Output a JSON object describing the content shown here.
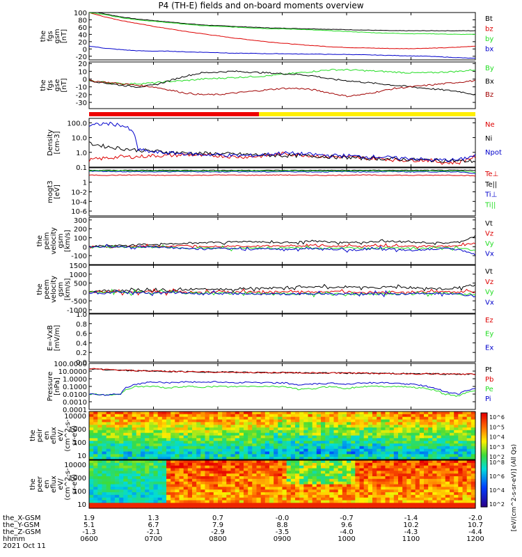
{
  "title": "P4 (TH-E) fields and on-board moments overview",
  "colors": {
    "black": "#000000",
    "red": "#dd0000",
    "green": "#22dd22",
    "blue": "#0000cc",
    "yellow": "#ffee00",
    "darkred": "#a00000"
  },
  "chart_data": [
    {
      "type": "line",
      "id": "fgs-gsm",
      "ylabel_lines": [
        "the",
        "fgs",
        "gsm",
        "[nT]"
      ],
      "ylim": [
        -30,
        100
      ],
      "yticks": [
        "-20",
        "0",
        "20",
        "40",
        "60",
        "80",
        "100"
      ],
      "yvals": [
        -20,
        0,
        20,
        40,
        60,
        80,
        100
      ],
      "series": [
        {
          "name": "Bt",
          "color": "#000000",
          "values": [
            105,
            96,
            88,
            82,
            78,
            74,
            70,
            66,
            64,
            62,
            60,
            58,
            57,
            56,
            55,
            54,
            53,
            52,
            51,
            50,
            50,
            50,
            50,
            50,
            50
          ]
        },
        {
          "name": "bz",
          "color": "#dd0000",
          "values": [
            100,
            88,
            78,
            70,
            62,
            55,
            48,
            42,
            36,
            30,
            25,
            20,
            16,
            12,
            9,
            6,
            4,
            3,
            2,
            1,
            1,
            2,
            3,
            5,
            8
          ]
        },
        {
          "name": "by",
          "color": "#22dd22",
          "values": [
            100,
            94,
            86,
            80,
            76,
            72,
            68,
            64,
            62,
            60,
            58,
            56,
            55,
            54,
            52,
            50,
            48,
            46,
            44,
            43,
            42,
            42,
            41,
            40,
            40
          ]
        },
        {
          "name": "bx",
          "color": "#0000cc",
          "values": [
            8,
            2,
            -2,
            -5,
            -6,
            -6,
            -8,
            -9,
            -10,
            -12,
            -12,
            -13,
            -13,
            -14,
            -14,
            -15,
            -15,
            -16,
            -17,
            -18,
            -19,
            -20,
            -22,
            -24,
            -26
          ]
        }
      ]
    },
    {
      "type": "line",
      "id": "fgs-gse",
      "ylabel_lines": [
        "the",
        "fgs",
        "gse",
        "[nT]"
      ],
      "ylim": [
        -38,
        22
      ],
      "yticks": [
        "-30",
        "-20",
        "-10",
        "0",
        "10",
        "20"
      ],
      "yvals": [
        -30,
        -20,
        -10,
        0,
        10,
        20
      ],
      "series": [
        {
          "name": "By",
          "color": "#22dd22",
          "values": [
            -2,
            -4,
            -6,
            -6,
            -5,
            -3,
            -2,
            0,
            1,
            2,
            3,
            4,
            6,
            8,
            10,
            12,
            12,
            11,
            10,
            9,
            8,
            8,
            9,
            10,
            12
          ]
        },
        {
          "name": "Bx",
          "color": "#000000",
          "values": [
            -2,
            -5,
            -8,
            -10,
            -8,
            -2,
            4,
            8,
            9,
            10,
            9,
            8,
            7,
            6,
            4,
            0,
            -2,
            -4,
            -6,
            -8,
            -10,
            -12,
            -14,
            -16,
            -20
          ]
        },
        {
          "name": "Bz",
          "color": "#a00000",
          "values": [
            -2,
            -4,
            -6,
            -8,
            -10,
            -14,
            -18,
            -20,
            -20,
            -18,
            -16,
            -14,
            -12,
            -12,
            -14,
            -18,
            -22,
            -20,
            -16,
            -12,
            -10,
            -8,
            -6,
            -4,
            -2
          ]
        }
      ]
    },
    {
      "type": "line",
      "id": "density",
      "log": true,
      "ylabel_lines": [
        "Density",
        "[cm-3]"
      ],
      "ylim": [
        0.1,
        200
      ],
      "yticks": [
        "100.0",
        "10.0",
        "1.0",
        "0.1"
      ],
      "yvals": [
        100,
        10,
        1,
        0.1
      ],
      "series": [
        {
          "name": "Ne",
          "color": "#dd0000",
          "values": [
            0.3,
            0.4,
            0.5,
            0.5,
            0.6,
            0.6,
            0.7,
            0.6,
            0.6,
            0.5,
            0.5,
            0.6,
            0.8,
            0.7,
            0.6,
            0.5,
            0.5,
            0.4,
            0.4,
            0.3,
            0.3,
            0.3,
            0.2,
            0.2,
            0.5
          ]
        },
        {
          "name": "Ni",
          "color": "#000000",
          "values": [
            4,
            2.5,
            1.8,
            1.4,
            1.2,
            1.0,
            0.9,
            0.85,
            0.8,
            0.75,
            0.7,
            0.65,
            0.6,
            0.6,
            0.55,
            0.5,
            0.45,
            0.4,
            0.38,
            0.35,
            0.32,
            0.3,
            0.28,
            0.26,
            0.25
          ]
        },
        {
          "name": "Npot",
          "color": "#0000cc",
          "values": [
            60,
            90,
            70,
            1.5,
            1.0,
            0.9,
            0.8,
            0.7,
            0.7,
            0.6,
            0.6,
            0.7,
            0.9,
            0.8,
            0.7,
            0.6,
            0.6,
            0.5,
            0.5,
            0.4,
            0.4,
            0.3,
            0.3,
            0.3,
            0.6
          ]
        }
      ]
    },
    {
      "type": "line",
      "id": "mom",
      "log": true,
      "ylabel_lines": [
        "mogt3",
        "[eV]"
      ],
      "ylim": [
        1e-07,
        1000
      ],
      "yticks": [
        "1",
        "10-2",
        "10-4",
        "10-6"
      ],
      "yvals": [
        1,
        0.01,
        0.0001,
        1e-06
      ],
      "series": [
        {
          "name": "Te⊥",
          "color": "#dd0000",
          "values": [
            30,
            28,
            30,
            32,
            28,
            26,
            30,
            28,
            32,
            30,
            28,
            30,
            32,
            30,
            28,
            26,
            30,
            32,
            28,
            30,
            26,
            28,
            30,
            28,
            20
          ]
        },
        {
          "name": "Te||",
          "color": "#000000",
          "values": [
            300,
            300,
            300,
            300,
            300,
            300,
            300,
            300,
            300,
            300,
            300,
            300,
            300,
            300,
            300,
            300,
            300,
            300,
            300,
            300,
            300,
            300,
            300,
            300,
            300
          ]
        },
        {
          "name": "Ti⊥",
          "color": "#0000cc",
          "values": [
            200,
            180,
            160,
            150,
            140,
            150,
            160,
            150,
            140,
            160,
            150,
            140,
            160,
            150,
            140,
            150,
            160,
            140,
            150,
            160,
            140,
            150,
            140,
            150,
            60
          ]
        },
        {
          "name": "Ti||",
          "color": "#22dd22",
          "values": [
            250,
            240,
            230,
            220,
            210,
            220,
            230,
            220,
            210,
            220,
            230,
            210,
            220,
            230,
            210,
            220,
            210,
            230,
            220,
            210,
            220,
            230,
            210,
            220,
            120
          ]
        }
      ]
    },
    {
      "type": "line",
      "id": "peim-velocity",
      "ylabel_lines": [
        "the",
        "peim",
        "velocity",
        "gsm",
        "[km/s]"
      ],
      "ylim": [
        -200,
        330
      ],
      "yticks": [
        "-100",
        "0",
        "100",
        "200",
        "300"
      ],
      "yvals": [
        -100,
        0,
        100,
        200,
        300
      ],
      "series": [
        {
          "name": "Vt",
          "color": "#000000",
          "values": [
            5,
            10,
            15,
            20,
            25,
            30,
            40,
            45,
            50,
            55,
            60,
            50,
            45,
            55,
            60,
            50,
            45,
            50,
            55,
            60,
            50,
            45,
            40,
            50,
            120
          ]
        },
        {
          "name": "Vz",
          "color": "#dd0000",
          "values": [
            0,
            0,
            0,
            5,
            5,
            5,
            10,
            10,
            5,
            10,
            5,
            10,
            5,
            10,
            10,
            5,
            10,
            5,
            10,
            5,
            5,
            10,
            5,
            10,
            40
          ]
        },
        {
          "name": "Vy",
          "color": "#22dd22",
          "values": [
            0,
            0,
            0,
            -5,
            0,
            -10,
            -20,
            -10,
            -15,
            -20,
            -10,
            -20,
            -15,
            -10,
            -20,
            -15,
            -10,
            -20,
            -15,
            -10,
            -20,
            -15,
            -10,
            -20,
            -40
          ]
        },
        {
          "name": "Vx",
          "color": "#0000cc",
          "values": [
            0,
            0,
            0,
            -5,
            -5,
            -10,
            -20,
            -30,
            -20,
            -25,
            -30,
            -20,
            -30,
            -25,
            -20,
            -30,
            -40,
            -30,
            -20,
            -30,
            -40,
            -30,
            -20,
            -30,
            -90
          ]
        }
      ]
    },
    {
      "type": "line",
      "id": "peem-velocity",
      "ylabel_lines": [
        "the",
        "peem",
        "velocity",
        "gsm",
        "[km/s]"
      ],
      "ylim": [
        -1200,
        1500
      ],
      "yticks": [
        "-1000",
        "-500",
        "0",
        "500",
        "1000",
        "1500"
      ],
      "yvals": [
        -1000,
        -500,
        0,
        500,
        1000,
        1500
      ],
      "series": [
        {
          "name": "Vt",
          "color": "#000000",
          "values": [
            50,
            80,
            60,
            70,
            60,
            80,
            120,
            200,
            150,
            180,
            220,
            200,
            250,
            300,
            280,
            250,
            300,
            260,
            240,
            300,
            220,
            200,
            180,
            250,
            400
          ]
        },
        {
          "name": "Vz",
          "color": "#dd0000",
          "values": [
            0,
            0,
            0,
            0,
            0,
            0,
            0,
            0,
            0,
            0,
            0,
            0,
            0,
            0,
            0,
            0,
            0,
            0,
            0,
            0,
            0,
            0,
            0,
            0,
            0
          ]
        },
        {
          "name": "Vy",
          "color": "#22dd22",
          "values": [
            0,
            -20,
            -10,
            -20,
            -30,
            -20,
            -40,
            -80,
            -60,
            -70,
            -90,
            -80,
            -100,
            -120,
            -110,
            -100,
            -120,
            -110,
            -100,
            -120,
            -90,
            -80,
            -70,
            -100,
            -200
          ]
        },
        {
          "name": "Vx",
          "color": "#0000cc",
          "values": [
            -20,
            -30,
            -20,
            -30,
            -40,
            -30,
            -50,
            -100,
            -80,
            -90,
            -110,
            -100,
            -120,
            -130,
            -120,
            -110,
            -130,
            -120,
            -110,
            -130,
            -100,
            -90,
            -80,
            -110,
            -250
          ]
        }
      ]
    },
    {
      "type": "line",
      "id": "efield",
      "ylabel_lines": [
        "E=-VxB",
        "[mV/m]"
      ],
      "ylim": [
        0,
        1
      ],
      "yticks": [
        "0.0",
        "0.2",
        "0.4",
        "0.6",
        "0.8",
        "1.0"
      ],
      "yvals": [
        0,
        0.2,
        0.4,
        0.6,
        0.8,
        1.0
      ],
      "series": [
        {
          "name": "Ez",
          "color": "#dd0000",
          "values": []
        },
        {
          "name": "Ey",
          "color": "#22dd22",
          "values": []
        },
        {
          "name": "Ex",
          "color": "#0000cc",
          "values": []
        }
      ]
    },
    {
      "type": "line",
      "id": "pressure",
      "log": true,
      "ylabel_lines": [
        "Pressure",
        "[nPa]"
      ],
      "ylim": [
        0.0001,
        100
      ],
      "yticks": [
        "100.0000",
        "10.0000",
        "1.0000",
        "0.1000",
        "0.0100",
        "0.0010",
        "0.0001"
      ],
      "yvals": [
        100,
        10,
        1,
        0.1,
        0.01,
        0.001,
        0.0001
      ],
      "series": [
        {
          "name": "Pt",
          "color": "#000000",
          "values": [
            20,
            16,
            13,
            11,
            10,
            9,
            8.5,
            8,
            7.5,
            7,
            6.8,
            6.5,
            6.2,
            6,
            5.8,
            5.6,
            5.4,
            5.2,
            5,
            4.8,
            4.6,
            4.4,
            4.2,
            4,
            3.8
          ]
        },
        {
          "name": "Pb",
          "color": "#dd0000",
          "values": [
            20,
            16,
            13,
            11,
            10,
            9,
            8.5,
            8,
            7.5,
            7,
            6.8,
            6.5,
            6.2,
            6,
            5.8,
            5.6,
            5.4,
            5.2,
            5,
            4.8,
            4.6,
            4.4,
            4.2,
            4,
            3.8
          ]
        },
        {
          "name": "Pe",
          "color": "#22dd22",
          "values": [
            0.01,
            0.008,
            0.01,
            0.1,
            0.1,
            0.06,
            0.1,
            0.08,
            0.1,
            0.09,
            0.1,
            0.1,
            0.1,
            0.04,
            0.05,
            0.1,
            0.05,
            0.1,
            0.1,
            0.1,
            0.08,
            0.05,
            0.01,
            0.005,
            0.03
          ]
        },
        {
          "name": "Pi",
          "color": "#0000cc",
          "values": [
            0.01,
            0.008,
            0.01,
            0.2,
            0.4,
            0.3,
            0.4,
            0.35,
            0.4,
            0.3,
            0.35,
            0.3,
            0.3,
            0.15,
            0.2,
            0.25,
            0.2,
            0.3,
            0.3,
            0.25,
            0.2,
            0.1,
            0.02,
            0.01,
            0.05
          ]
        }
      ]
    },
    {
      "type": "heatmap",
      "id": "peir-en-eflux",
      "ylabel_lines": [
        "the",
        "peir",
        "en",
        "eflux",
        "eV/",
        "(cm^2-s-",
        "sr-eV)"
      ],
      "yticks": [
        "10000",
        "1000",
        "100",
        "10"
      ],
      "colorbar_ticks": [
        "10^6",
        "10^5",
        "10^4",
        "10^3",
        "10^2"
      ],
      "colorbar_label": "[eV/(cm^2-s-sr-eV)] (All Qs)"
    },
    {
      "type": "heatmap",
      "id": "peer-en-eflux",
      "ylabel_lines": [
        "the",
        "peer",
        "en",
        "eflux",
        "eV/",
        "(cm^2-s-",
        "sr-eV)"
      ],
      "yticks": [
        "10000",
        "1000",
        "100",
        "10"
      ],
      "colorbar_ticks": [
        "10^8",
        "10^6",
        "10^4",
        "10^2"
      ]
    }
  ],
  "ephemeris": {
    "labels": [
      "the_X-GSM",
      "the_Y-GSM",
      "the_Z-GSM",
      "hhmm",
      "2021 Oct 11"
    ],
    "x_gsm": [
      "1.9",
      "1.3",
      "0.7",
      "-0.0",
      "-0.7",
      "-1.4",
      "-2.0"
    ],
    "y_gsm": [
      "5.1",
      "6.7",
      "7.9",
      "8.8",
      "9.6",
      "10.2",
      "10.7"
    ],
    "z_gsm": [
      "-1.3",
      "-2.1",
      "-2.9",
      "-3.5",
      "-4.0",
      "-4.3",
      "-4.4"
    ],
    "hhmm": [
      "0600",
      "0700",
      "0800",
      "0900",
      "1000",
      "1100",
      "1200"
    ]
  },
  "mode_bar": {
    "segments": [
      {
        "color": "#ee0000",
        "fraction": 0.44
      },
      {
        "color": "#ffee00",
        "fraction": 0.56
      }
    ]
  }
}
